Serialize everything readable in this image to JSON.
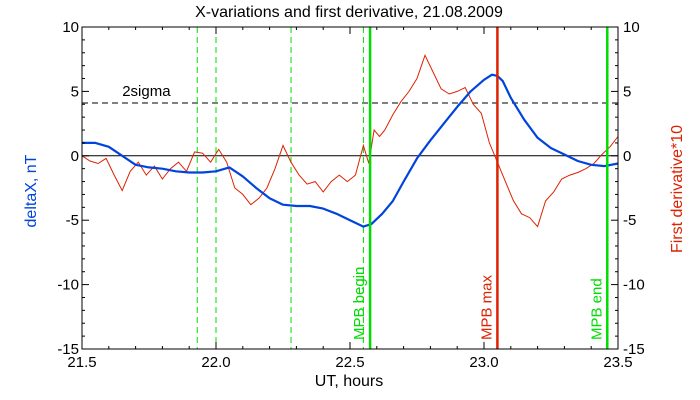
{
  "chart_data": {
    "type": "line",
    "title": "X-variations and first derivative, 21.08.2009",
    "xlabel": "UT, hours",
    "ylabel_left": "deltaX, nT",
    "ylabel_right": "First derivative*10",
    "xlim": [
      21.5,
      23.5
    ],
    "ylim": [
      -15,
      10
    ],
    "x_ticks": [
      21.5,
      22.0,
      22.5,
      23.0,
      23.5
    ],
    "x_tick_labels": [
      "21.5",
      "22.0",
      "22.5",
      "23.0",
      "23.5"
    ],
    "y_ticks": [
      -15,
      -10,
      -5,
      0,
      5,
      10
    ],
    "y_tick_labels": [
      "-15",
      "-10",
      "-5",
      "0",
      "5",
      "10"
    ],
    "grid": false,
    "colors": {
      "deltaX": "#0044dd",
      "derivative": "#dd2200",
      "green": "#00dd00",
      "red": "#dd2200",
      "axis": "#000000"
    },
    "series": [
      {
        "key": "deltaX",
        "axis": "left",
        "x": [
          21.5,
          21.55,
          21.6,
          21.65,
          21.7,
          21.75,
          21.8,
          21.85,
          21.9,
          21.95,
          22.0,
          22.05,
          22.1,
          22.15,
          22.2,
          22.25,
          22.3,
          22.35,
          22.4,
          22.45,
          22.5,
          22.55,
          22.58,
          22.62,
          22.66,
          22.7,
          22.75,
          22.8,
          22.85,
          22.9,
          22.95,
          23.0,
          23.03,
          23.05,
          23.07,
          23.1,
          23.15,
          23.2,
          23.25,
          23.3,
          23.35,
          23.4,
          23.45,
          23.5
        ],
        "values": [
          1.0,
          1.0,
          0.7,
          0.0,
          -0.7,
          -0.9,
          -1.0,
          -1.2,
          -1.3,
          -1.3,
          -1.2,
          -0.9,
          -1.6,
          -2.5,
          -3.3,
          -3.8,
          -3.9,
          -3.9,
          -4.1,
          -4.5,
          -5.0,
          -5.5,
          -5.3,
          -4.5,
          -3.5,
          -2.0,
          -0.2,
          1.2,
          2.5,
          3.8,
          5.0,
          5.9,
          6.3,
          6.2,
          5.8,
          4.5,
          2.8,
          1.4,
          0.6,
          0.1,
          -0.4,
          -0.7,
          -0.8,
          -0.6
        ]
      },
      {
        "key": "derivative",
        "axis": "right",
        "x": [
          21.5,
          21.53,
          21.56,
          21.59,
          21.62,
          21.65,
          21.68,
          21.71,
          21.74,
          21.77,
          21.8,
          21.83,
          21.86,
          21.89,
          21.92,
          21.95,
          21.98,
          22.01,
          22.04,
          22.07,
          22.1,
          22.13,
          22.16,
          22.19,
          22.22,
          22.25,
          22.28,
          22.31,
          22.34,
          22.37,
          22.4,
          22.43,
          22.46,
          22.49,
          22.52,
          22.55,
          22.57,
          22.59,
          22.61,
          22.63,
          22.66,
          22.69,
          22.72,
          22.75,
          22.78,
          22.81,
          22.84,
          22.87,
          22.9,
          22.93,
          22.96,
          22.99,
          23.02,
          23.05,
          23.08,
          23.11,
          23.14,
          23.17,
          23.2,
          23.23,
          23.26,
          23.29,
          23.32,
          23.35,
          23.38,
          23.41,
          23.44,
          23.47,
          23.5
        ],
        "values": [
          0.0,
          -0.4,
          -0.6,
          -0.2,
          -1.5,
          -2.7,
          -1.2,
          -0.5,
          -1.5,
          -0.8,
          -1.8,
          -1.0,
          -0.5,
          -1.2,
          0.3,
          0.2,
          -0.5,
          0.5,
          -0.5,
          -2.5,
          -3.0,
          -3.8,
          -3.3,
          -2.5,
          -1.0,
          0.8,
          -0.5,
          -1.5,
          -2.2,
          -2.0,
          -2.8,
          -2.0,
          -1.5,
          -2.0,
          -1.5,
          0.8,
          -0.6,
          2.0,
          1.5,
          2.0,
          3.2,
          4.2,
          5.0,
          6.0,
          7.8,
          6.5,
          5.2,
          4.8,
          5.0,
          5.3,
          4.0,
          3.3,
          1.0,
          -0.5,
          -2.0,
          -3.5,
          -4.5,
          -4.8,
          -5.5,
          -3.5,
          -2.8,
          -1.8,
          -1.5,
          -1.3,
          -1.0,
          -0.6,
          0.1,
          0.7,
          1.5
        ]
      }
    ],
    "threshold": {
      "label": "2sigma",
      "value": 4.1
    },
    "dashed_markers_x": [
      21.93,
      22.0,
      22.28,
      22.55
    ],
    "markers": [
      {
        "label": "MPB begin",
        "x": 22.575,
        "color": "#00dd00"
      },
      {
        "label": "MPB max",
        "x": 23.05,
        "color": "#dd2200"
      },
      {
        "label": "MPB end",
        "x": 23.46,
        "color": "#00dd00"
      }
    ]
  }
}
